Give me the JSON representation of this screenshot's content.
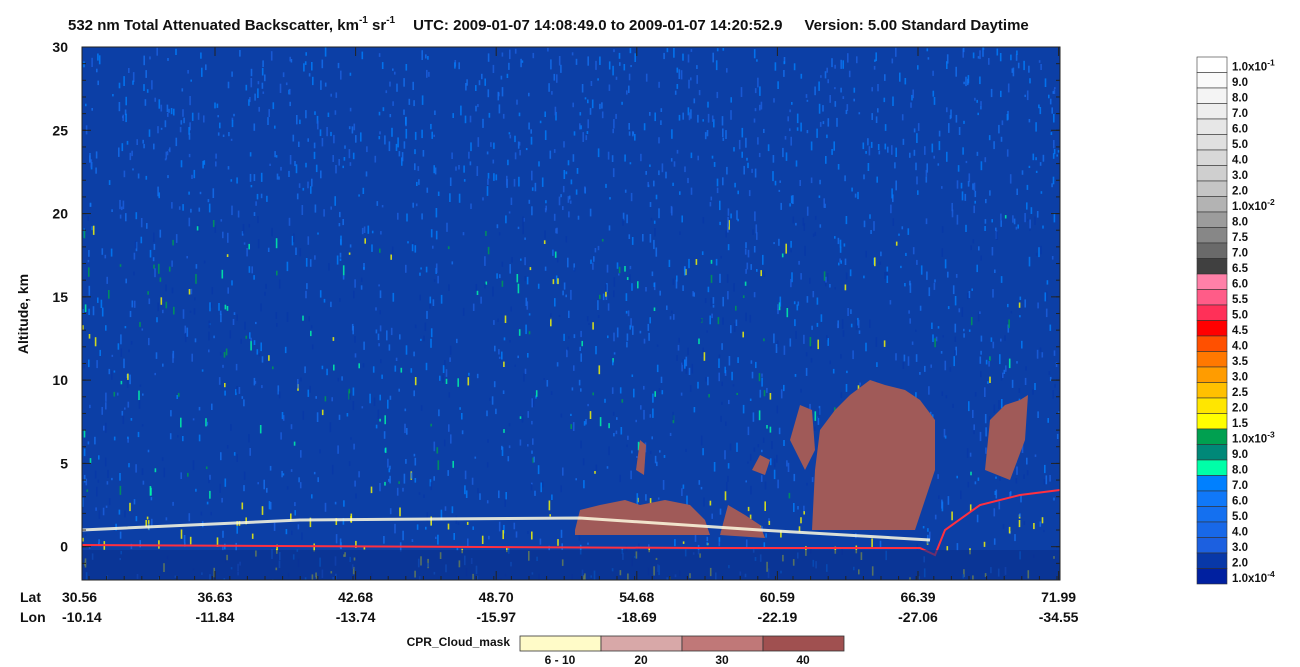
{
  "chart_data": {
    "type": "heatmap",
    "title": {
      "main": "532 nm Total Attenuated Backscatter, km",
      "sup1": "-1",
      "sr": " sr",
      "sup2": "-1",
      "utc": "UTC:  2009-01-07 14:08:49.0  to  2009-01-07 14:20:52.9",
      "version": "Version: 5.00  Standard  Daytime"
    },
    "ylabel": "Altitude, km",
    "ylim": [
      -2,
      30
    ],
    "yticks": [
      0,
      5,
      10,
      15,
      20,
      25,
      30
    ],
    "x_row_labels": [
      "Lat",
      "Lon"
    ],
    "lat": [
      "30.56",
      "36.63",
      "42.68",
      "48.70",
      "54.68",
      "60.59",
      "66.39",
      "71.99"
    ],
    "lon": [
      "-10.14",
      "-11.84",
      "-13.74",
      "-15.97",
      "-18.69",
      "-22.19",
      "-27.06",
      "-34.55"
    ],
    "colorbar": [
      {
        "label": "1.0x10",
        "exp": "-1",
        "color": "#ffffff"
      },
      {
        "label": "9.0",
        "color": "#fafafa"
      },
      {
        "label": "8.0",
        "color": "#f4f4f4"
      },
      {
        "label": "7.0",
        "color": "#eeeeee"
      },
      {
        "label": "6.0",
        "color": "#e7e7e7"
      },
      {
        "label": "5.0",
        "color": "#e0e0e0"
      },
      {
        "label": "4.0",
        "color": "#d8d8d8"
      },
      {
        "label": "3.0",
        "color": "#cfcfcf"
      },
      {
        "label": "2.0",
        "color": "#c5c5c5"
      },
      {
        "label": "1.0x10",
        "exp": "-2",
        "color": "#b3b3b3"
      },
      {
        "label": "8.0",
        "color": "#9c9c9c"
      },
      {
        "label": "7.5",
        "color": "#878787"
      },
      {
        "label": "7.0",
        "color": "#6a6a6a"
      },
      {
        "label": "6.5",
        "color": "#404040"
      },
      {
        "label": "6.0",
        "color": "#ff80a8"
      },
      {
        "label": "5.5",
        "color": "#ff5c88"
      },
      {
        "label": "5.0",
        "color": "#ff3058"
      },
      {
        "label": "4.5",
        "color": "#ff0000"
      },
      {
        "label": "4.0",
        "color": "#ff5000"
      },
      {
        "label": "3.5",
        "color": "#ff7800"
      },
      {
        "label": "3.0",
        "color": "#ff9c00"
      },
      {
        "label": "2.5",
        "color": "#ffc000"
      },
      {
        "label": "2.0",
        "color": "#ffe600"
      },
      {
        "label": "1.5",
        "color": "#ffff00"
      },
      {
        "label": "1.0x10",
        "exp": "-3",
        "color": "#00a050"
      },
      {
        "label": "9.0",
        "color": "#008878"
      },
      {
        "label": "8.0",
        "color": "#00ffa8"
      },
      {
        "label": "7.0",
        "color": "#0080ff"
      },
      {
        "label": "6.0",
        "color": "#1078f8"
      },
      {
        "label": "5.0",
        "color": "#1470f0"
      },
      {
        "label": "4.0",
        "color": "#1868e8"
      },
      {
        "label": "3.0",
        "color": "#1c60e0"
      },
      {
        "label": "2.0",
        "color": "#0838a8"
      },
      {
        "label": "1.0x10",
        "exp": "-4",
        "color": "#0020a0"
      }
    ],
    "cloud_mask": {
      "title": "CPR_Cloud_mask",
      "items": [
        {
          "label": "6 - 10",
          "color": "#fffbc8"
        },
        {
          "label": "20",
          "color": "#d8a8a8"
        },
        {
          "label": "30",
          "color": "#c07878"
        },
        {
          "label": "40",
          "color": "#a05050"
        }
      ]
    }
  }
}
